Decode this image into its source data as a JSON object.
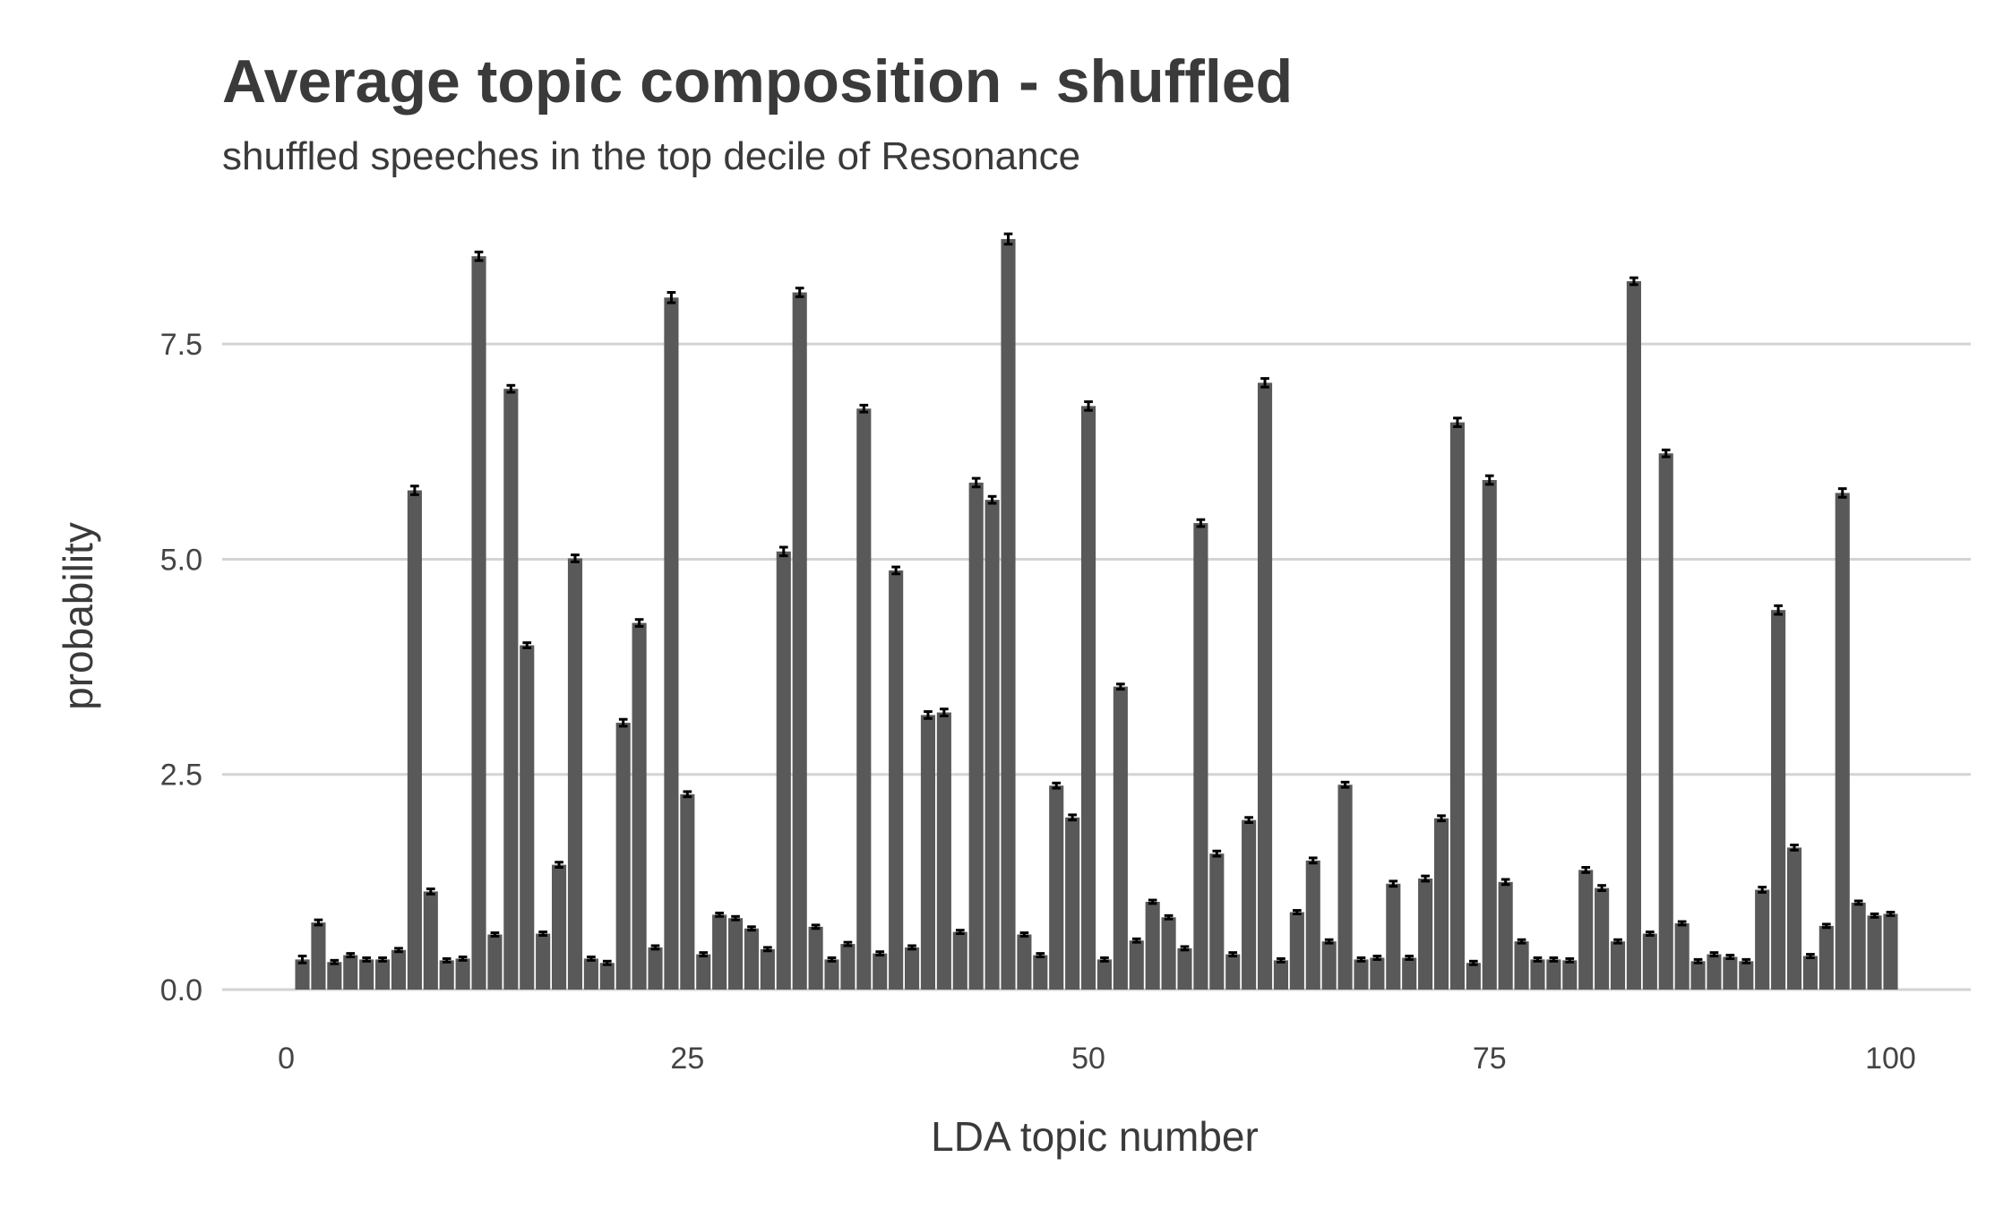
{
  "chart_data": {
    "type": "bar",
    "title": "Average topic composition - shuffled",
    "subtitle": "shuffled speeches in the top decile of Resonance",
    "xlabel": "LDA topic number",
    "ylabel": "probability",
    "x": [
      1,
      2,
      3,
      4,
      5,
      6,
      7,
      8,
      9,
      10,
      11,
      12,
      13,
      14,
      15,
      16,
      17,
      18,
      19,
      20,
      21,
      22,
      23,
      24,
      25,
      26,
      27,
      28,
      29,
      30,
      31,
      32,
      33,
      34,
      35,
      36,
      37,
      38,
      39,
      40,
      41,
      42,
      43,
      44,
      45,
      46,
      47,
      48,
      49,
      50,
      51,
      52,
      53,
      54,
      55,
      56,
      57,
      58,
      59,
      60,
      61,
      62,
      63,
      64,
      65,
      66,
      67,
      68,
      69,
      70,
      71,
      72,
      73,
      74,
      75,
      76,
      77,
      78,
      79,
      80,
      81,
      82,
      83,
      84,
      85,
      86,
      87,
      88,
      89,
      90,
      91,
      92,
      93,
      94,
      95,
      96,
      97,
      98,
      99,
      100
    ],
    "values": [
      0.35,
      0.78,
      0.32,
      0.4,
      0.35,
      0.35,
      0.46,
      5.8,
      1.14,
      0.34,
      0.36,
      8.52,
      0.64,
      6.98,
      4.0,
      0.65,
      1.45,
      5.01,
      0.36,
      0.31,
      3.1,
      4.26,
      0.49,
      8.04,
      2.27,
      0.41,
      0.87,
      0.83,
      0.71,
      0.47,
      5.09,
      8.1,
      0.73,
      0.35,
      0.53,
      6.75,
      0.42,
      4.87,
      0.49,
      3.19,
      3.22,
      0.67,
      5.89,
      5.69,
      8.72,
      0.64,
      0.4,
      2.37,
      2.0,
      6.78,
      0.35,
      3.52,
      0.57,
      1.02,
      0.84,
      0.48,
      5.42,
      1.58,
      0.41,
      1.97,
      7.05,
      0.34,
      0.9,
      1.5,
      0.56,
      2.38,
      0.35,
      0.37,
      1.23,
      0.37,
      1.29,
      1.99,
      6.59,
      0.31,
      5.92,
      1.25,
      0.56,
      0.35,
      0.35,
      0.34,
      1.39,
      1.18,
      0.56,
      8.23,
      0.65,
      6.23,
      0.77,
      0.33,
      0.41,
      0.38,
      0.33,
      1.16,
      4.41,
      1.65,
      0.39,
      0.74,
      5.77,
      1.01,
      0.86,
      0.88
    ],
    "error": [
      0.04,
      0.03,
      0.02,
      0.02,
      0.02,
      0.02,
      0.02,
      0.05,
      0.03,
      0.02,
      0.02,
      0.05,
      0.02,
      0.04,
      0.03,
      0.02,
      0.03,
      0.04,
      0.02,
      0.02,
      0.04,
      0.04,
      0.02,
      0.06,
      0.03,
      0.02,
      0.02,
      0.02,
      0.02,
      0.02,
      0.05,
      0.05,
      0.02,
      0.02,
      0.02,
      0.04,
      0.02,
      0.04,
      0.02,
      0.04,
      0.04,
      0.02,
      0.05,
      0.04,
      0.06,
      0.02,
      0.02,
      0.03,
      0.03,
      0.05,
      0.02,
      0.03,
      0.02,
      0.02,
      0.02,
      0.02,
      0.04,
      0.03,
      0.02,
      0.03,
      0.05,
      0.02,
      0.02,
      0.03,
      0.02,
      0.03,
      0.02,
      0.02,
      0.03,
      0.02,
      0.03,
      0.03,
      0.05,
      0.02,
      0.05,
      0.03,
      0.02,
      0.02,
      0.02,
      0.02,
      0.03,
      0.03,
      0.02,
      0.04,
      0.02,
      0.04,
      0.02,
      0.02,
      0.02,
      0.02,
      0.02,
      0.03,
      0.05,
      0.03,
      0.02,
      0.02,
      0.05,
      0.02,
      0.02,
      0.02
    ],
    "xlim": [
      -4,
      105
    ],
    "ylim": [
      0,
      9.0
    ],
    "xticks": [
      0,
      25,
      50,
      75,
      100
    ],
    "xtick_labels": [
      "0",
      "25",
      "50",
      "75",
      "100"
    ],
    "yticks": [
      0,
      2.5,
      5.0,
      7.5
    ],
    "ytick_labels": [
      "0.0",
      "2.5",
      "5.0",
      "7.5"
    ],
    "grid": "horizontal",
    "legend": "none",
    "bar_color": "#595959",
    "errorbar_color": "#000000",
    "grid_color": "#d3d3d3"
  }
}
